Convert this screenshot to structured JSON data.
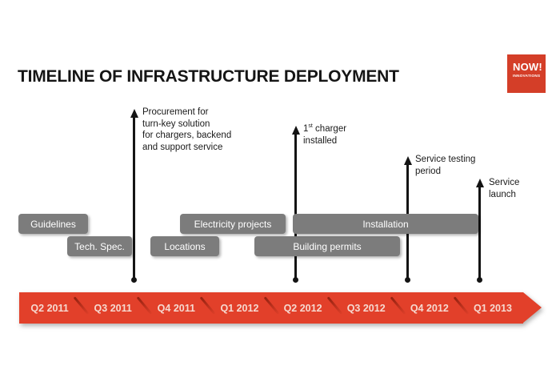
{
  "title": "TIMELINE OF INFRASTRUCTURE DEPLOYMENT",
  "logo": {
    "line1": "NOW!",
    "line2": "INNOVATIONS"
  },
  "milestones": [
    {
      "label": "Procurement for\nturn-key solution\nfor chargers, backend\nand support service"
    },
    {
      "num": "1",
      "sup": "st",
      "rest": " charger\ninstalled"
    },
    {
      "label": "Service testing\nperiod"
    },
    {
      "label": "Service\nlaunch"
    }
  ],
  "phases": [
    {
      "label": "Guidelines"
    },
    {
      "label": "Tech. Spec."
    },
    {
      "label": "Locations"
    },
    {
      "label": "Electricity projects"
    },
    {
      "label": "Building permits"
    },
    {
      "label": "Installation"
    }
  ],
  "timeline": {
    "quarters": [
      "Q2 2011",
      "Q3 2011",
      "Q4 2011",
      "Q1 2012",
      "Q2 2012",
      "Q3 2012",
      "Q4 2012",
      "Q1 2013"
    ]
  },
  "colors": {
    "arrow-red": "#e2402a",
    "logo-red": "#d43e28",
    "bar-gray": "#7c7c7c",
    "line-black": "#141414",
    "quarter-text": "#f6d9d0"
  }
}
